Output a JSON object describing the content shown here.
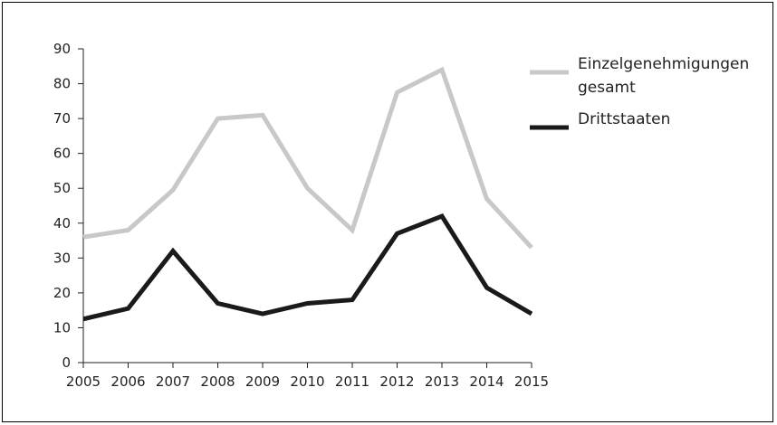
{
  "chart_data": {
    "type": "line",
    "title": "",
    "xlabel": "",
    "ylabel": "",
    "x": [
      "2005",
      "2006",
      "2007",
      "2008",
      "2009",
      "2010",
      "2011",
      "2012",
      "2013",
      "2014",
      "2015"
    ],
    "ylim": [
      0,
      90
    ],
    "yticks": [
      0,
      10,
      20,
      30,
      40,
      50,
      60,
      70,
      80,
      90
    ],
    "grid": false,
    "legend_position": "right",
    "series": [
      {
        "name": "Einzelgenehmigungen gesamt",
        "name_lines": [
          "Einzelgenehmigungen",
          "gesamt"
        ],
        "color": "#c8c8c8",
        "values": [
          36,
          38,
          49.5,
          70,
          71,
          50,
          38,
          77.5,
          84,
          47,
          33
        ]
      },
      {
        "name": "Drittstaaten",
        "name_lines": [
          "Drittstaaten"
        ],
        "color": "#1a1a1a",
        "values": [
          12.5,
          15.5,
          32,
          17,
          14,
          17,
          18,
          37,
          42,
          21.5,
          14
        ]
      }
    ]
  }
}
